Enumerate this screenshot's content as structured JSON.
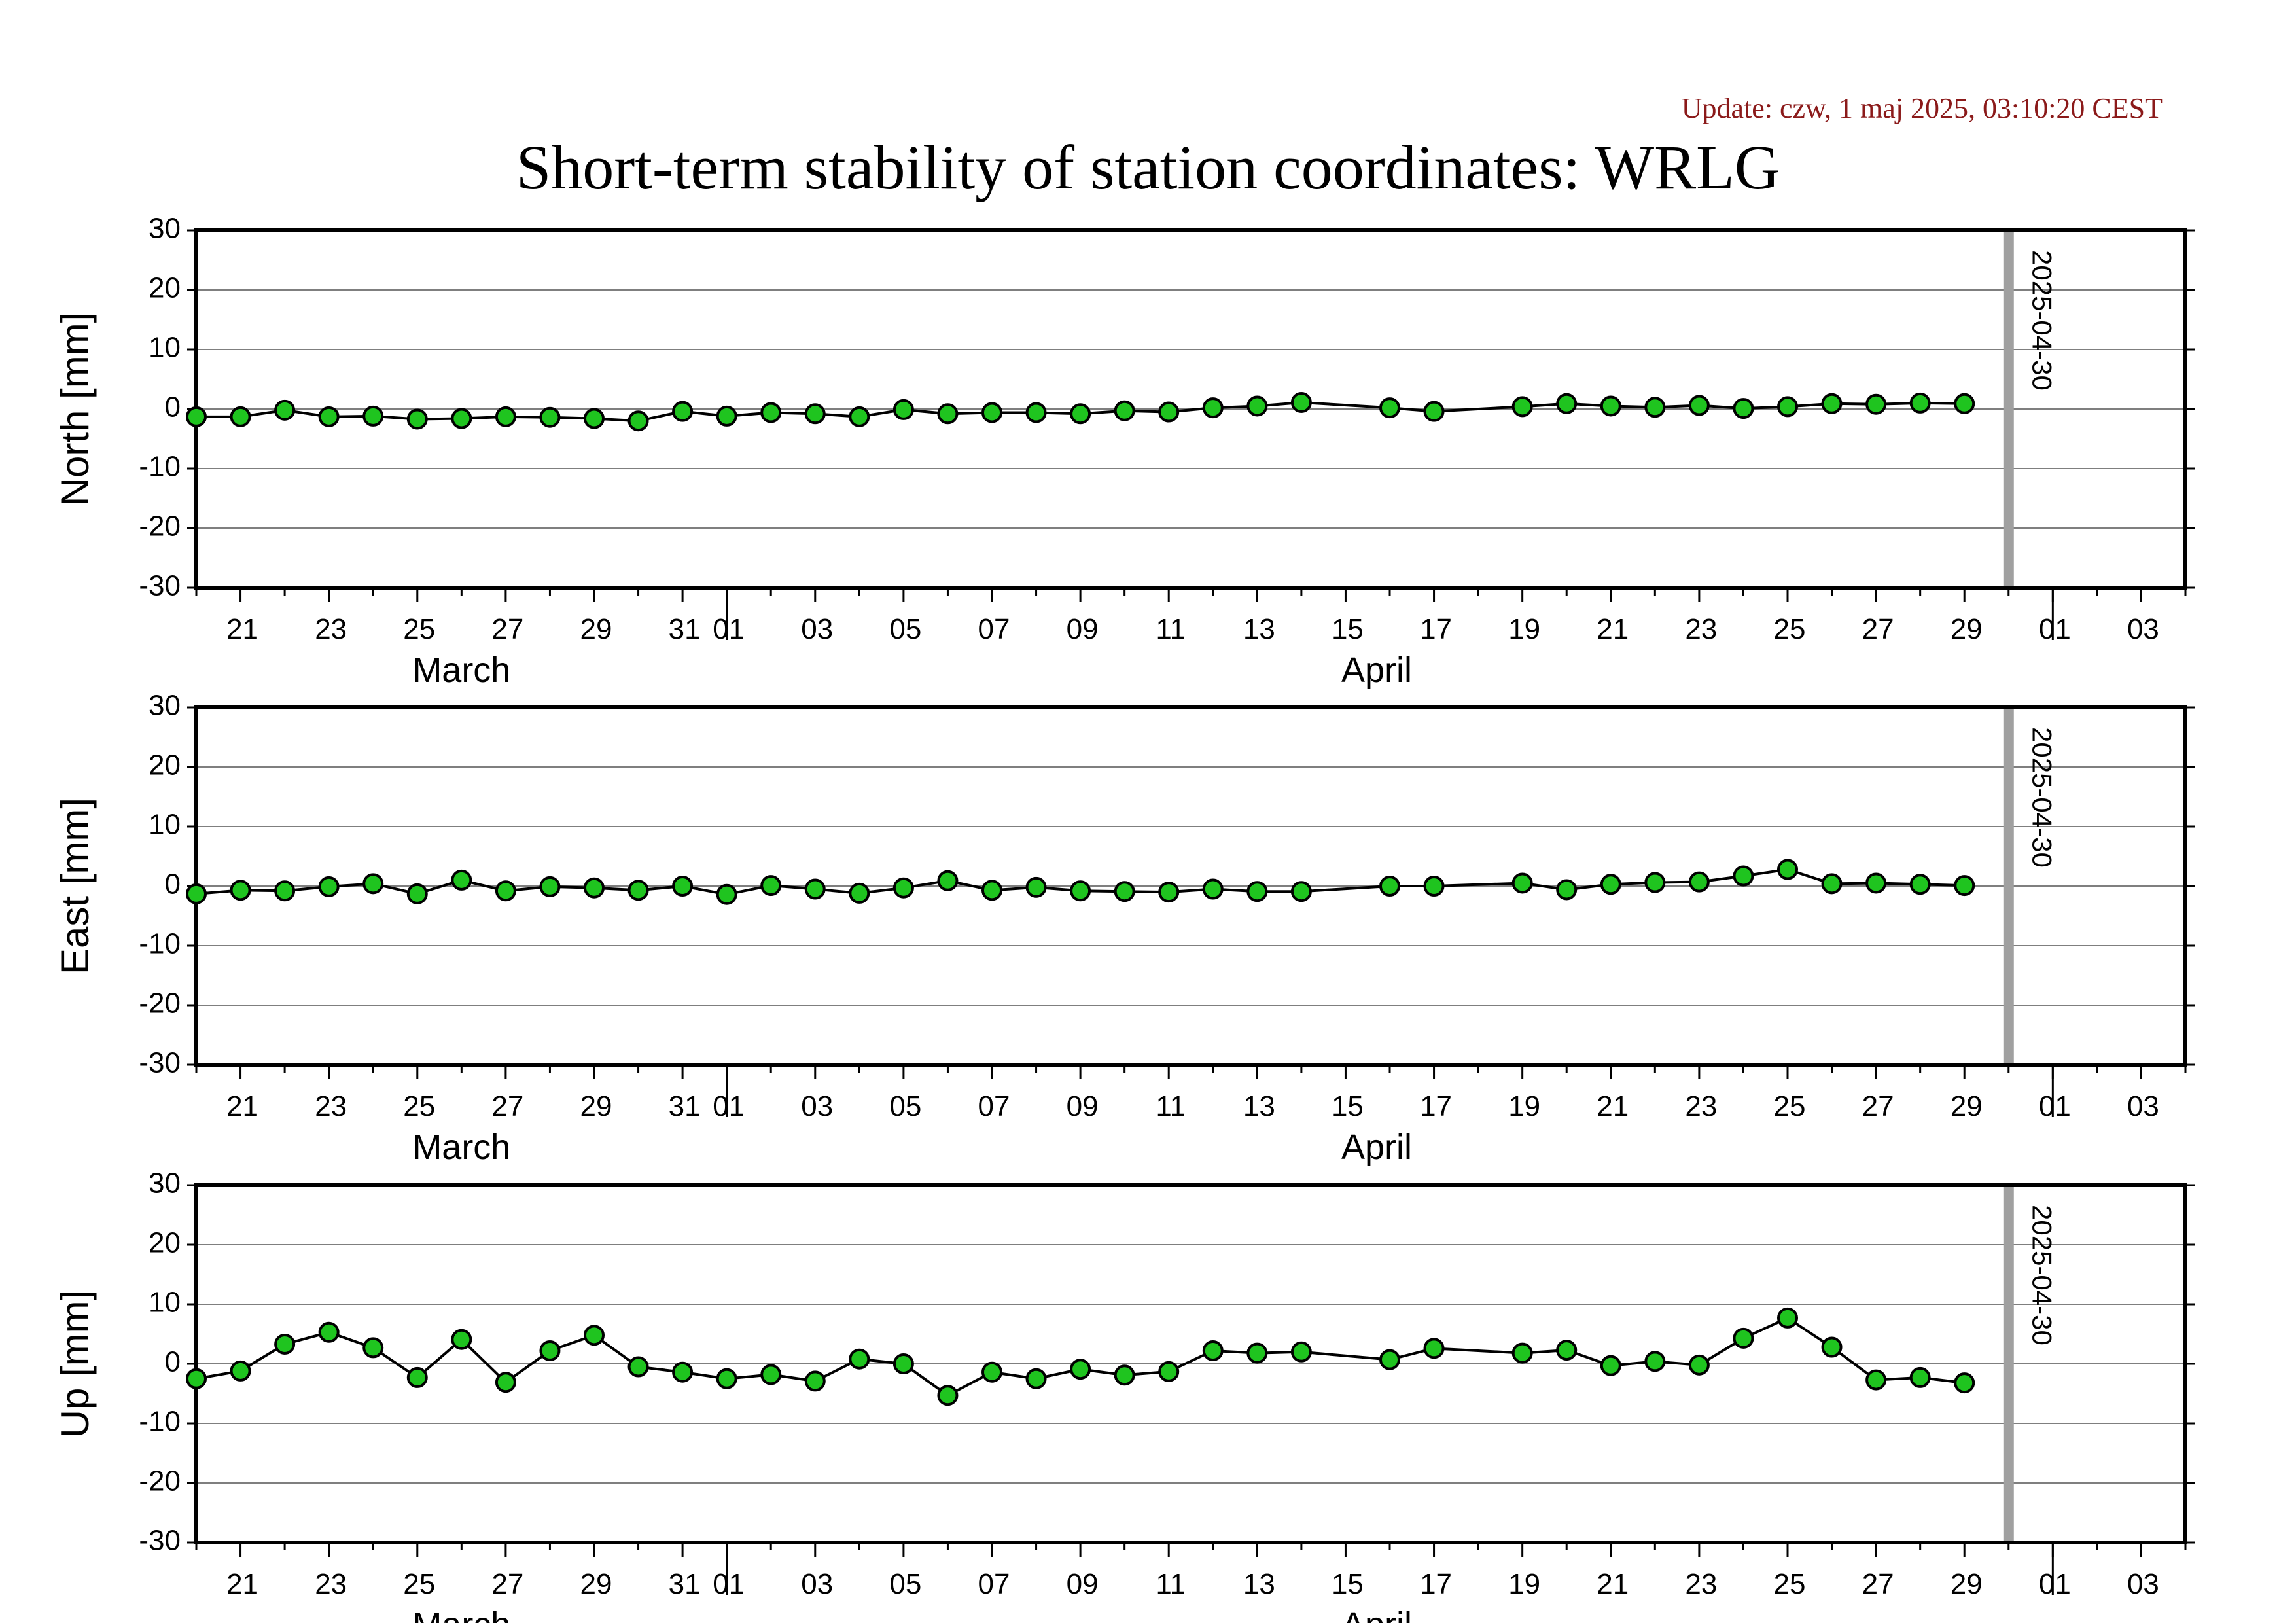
{
  "header": {
    "update": "Update: czw, 1 maj 2025, 03:10:20 CEST",
    "title": "Short-term stability of station coordinates: WRLG"
  },
  "colors": {
    "marker_fill": "#1fc41f",
    "marker_stroke": "#000000",
    "line": "#000000",
    "grid": "#7f7f7f",
    "marker_band": "#a0a0a0"
  },
  "chart_data": [
    {
      "type": "line",
      "ylabel": "North [mm]",
      "ylim": [
        -30,
        30
      ],
      "yticks": [
        30,
        20,
        10,
        0,
        -10,
        -20,
        -30
      ],
      "xlim": [
        "2025-03-20",
        "2025-05-04"
      ],
      "xtick_labels": [
        "21",
        "23",
        "25",
        "27",
        "29",
        "31",
        "01",
        "03",
        "05",
        "07",
        "09",
        "11",
        "13",
        "15",
        "17",
        "19",
        "21",
        "23",
        "25",
        "27",
        "29",
        "01",
        "03"
      ],
      "month_labels": [
        "March",
        "April"
      ],
      "grid": true,
      "marker_line": {
        "date": "2025-04-30",
        "label": "2025-04-30"
      },
      "x": [
        "2025-03-20",
        "2025-03-21",
        "2025-03-22",
        "2025-03-23",
        "2025-03-24",
        "2025-03-25",
        "2025-03-26",
        "2025-03-27",
        "2025-03-28",
        "2025-03-29",
        "2025-03-30",
        "2025-03-31",
        "2025-04-01",
        "2025-04-02",
        "2025-04-03",
        "2025-04-04",
        "2025-04-05",
        "2025-04-06",
        "2025-04-07",
        "2025-04-08",
        "2025-04-09",
        "2025-04-10",
        "2025-04-11",
        "2025-04-12",
        "2025-04-13",
        "2025-04-14",
        "2025-04-16",
        "2025-04-17",
        "2025-04-19",
        "2025-04-20",
        "2025-04-21",
        "2025-04-22",
        "2025-04-23",
        "2025-04-24",
        "2025-04-25",
        "2025-04-26",
        "2025-04-27",
        "2025-04-28",
        "2025-04-29"
      ],
      "y": [
        -1.3,
        -1.3,
        -0.2,
        -1.3,
        -1.2,
        -1.7,
        -1.6,
        -1.3,
        -1.4,
        -1.6,
        -2.0,
        -0.4,
        -1.2,
        -0.6,
        -0.8,
        -1.3,
        -0.1,
        -0.8,
        -0.6,
        -0.6,
        -0.8,
        -0.3,
        -0.5,
        0.2,
        0.5,
        1.1,
        0.2,
        -0.4,
        0.4,
        0.9,
        0.5,
        0.3,
        0.6,
        0.1,
        0.4,
        0.9,
        0.8,
        1.0,
        0.9
      ]
    },
    {
      "type": "line",
      "ylabel": "East [mm]",
      "ylim": [
        -30,
        30
      ],
      "yticks": [
        30,
        20,
        10,
        0,
        -10,
        -20,
        -30
      ],
      "xlim": [
        "2025-03-20",
        "2025-05-04"
      ],
      "xtick_labels": [
        "21",
        "23",
        "25",
        "27",
        "29",
        "31",
        "01",
        "03",
        "05",
        "07",
        "09",
        "11",
        "13",
        "15",
        "17",
        "19",
        "21",
        "23",
        "25",
        "27",
        "29",
        "01",
        "03"
      ],
      "month_labels": [
        "March",
        "April"
      ],
      "grid": true,
      "marker_line": {
        "date": "2025-04-30",
        "label": "2025-04-30"
      },
      "x": [
        "2025-03-20",
        "2025-03-21",
        "2025-03-22",
        "2025-03-23",
        "2025-03-24",
        "2025-03-25",
        "2025-03-26",
        "2025-03-27",
        "2025-03-28",
        "2025-03-29",
        "2025-03-30",
        "2025-03-31",
        "2025-04-01",
        "2025-04-02",
        "2025-04-03",
        "2025-04-04",
        "2025-04-05",
        "2025-04-06",
        "2025-04-07",
        "2025-04-08",
        "2025-04-09",
        "2025-04-10",
        "2025-04-11",
        "2025-04-12",
        "2025-04-13",
        "2025-04-14",
        "2025-04-16",
        "2025-04-17",
        "2025-04-19",
        "2025-04-20",
        "2025-04-21",
        "2025-04-22",
        "2025-04-23",
        "2025-04-24",
        "2025-04-25",
        "2025-04-26",
        "2025-04-27",
        "2025-04-28",
        "2025-04-29"
      ],
      "y": [
        -1.3,
        -0.7,
        -0.8,
        -0.1,
        0.4,
        -1.3,
        1.0,
        -0.8,
        -0.1,
        -0.3,
        -0.7,
        0.0,
        -1.4,
        0.1,
        -0.5,
        -1.2,
        -0.3,
        0.9,
        -0.7,
        -0.2,
        -0.8,
        -0.9,
        -1.0,
        -0.5,
        -0.9,
        -0.9,
        0.0,
        0.0,
        0.5,
        -0.6,
        0.3,
        0.6,
        0.7,
        1.7,
        2.8,
        0.4,
        0.5,
        0.3,
        0.1
      ]
    },
    {
      "type": "line",
      "ylabel": "Up [mm]",
      "ylim": [
        -30,
        30
      ],
      "yticks": [
        30,
        20,
        10,
        0,
        -10,
        -20,
        -30
      ],
      "xlim": [
        "2025-03-20",
        "2025-05-04"
      ],
      "xtick_labels": [
        "21",
        "23",
        "25",
        "27",
        "29",
        "31",
        "01",
        "03",
        "05",
        "07",
        "09",
        "11",
        "13",
        "15",
        "17",
        "19",
        "21",
        "23",
        "25",
        "27",
        "29",
        "01",
        "03"
      ],
      "month_labels": [
        "March",
        "April"
      ],
      "grid": true,
      "marker_line": {
        "date": "2025-04-30",
        "label": "2025-04-30"
      },
      "x": [
        "2025-03-20",
        "2025-03-21",
        "2025-03-22",
        "2025-03-23",
        "2025-03-24",
        "2025-03-25",
        "2025-03-26",
        "2025-03-27",
        "2025-03-28",
        "2025-03-29",
        "2025-03-30",
        "2025-03-31",
        "2025-04-01",
        "2025-04-02",
        "2025-04-03",
        "2025-04-04",
        "2025-04-05",
        "2025-04-06",
        "2025-04-07",
        "2025-04-08",
        "2025-04-09",
        "2025-04-10",
        "2025-04-11",
        "2025-04-12",
        "2025-04-13",
        "2025-04-14",
        "2025-04-16",
        "2025-04-17",
        "2025-04-19",
        "2025-04-20",
        "2025-04-21",
        "2025-04-22",
        "2025-04-23",
        "2025-04-24",
        "2025-04-25",
        "2025-04-26",
        "2025-04-27",
        "2025-04-28",
        "2025-04-29"
      ],
      "y": [
        -2.5,
        -1.2,
        3.3,
        5.3,
        2.7,
        -2.3,
        4.1,
        -3.1,
        2.2,
        4.8,
        -0.5,
        -1.4,
        -2.5,
        -1.8,
        -2.9,
        0.8,
        0.0,
        -5.3,
        -1.4,
        -2.5,
        -0.9,
        -1.9,
        -1.3,
        2.2,
        1.8,
        2.0,
        0.7,
        2.6,
        1.8,
        2.3,
        -0.3,
        0.4,
        -0.2,
        4.3,
        7.7,
        2.8,
        -2.7,
        -2.3,
        -3.2
      ]
    }
  ]
}
